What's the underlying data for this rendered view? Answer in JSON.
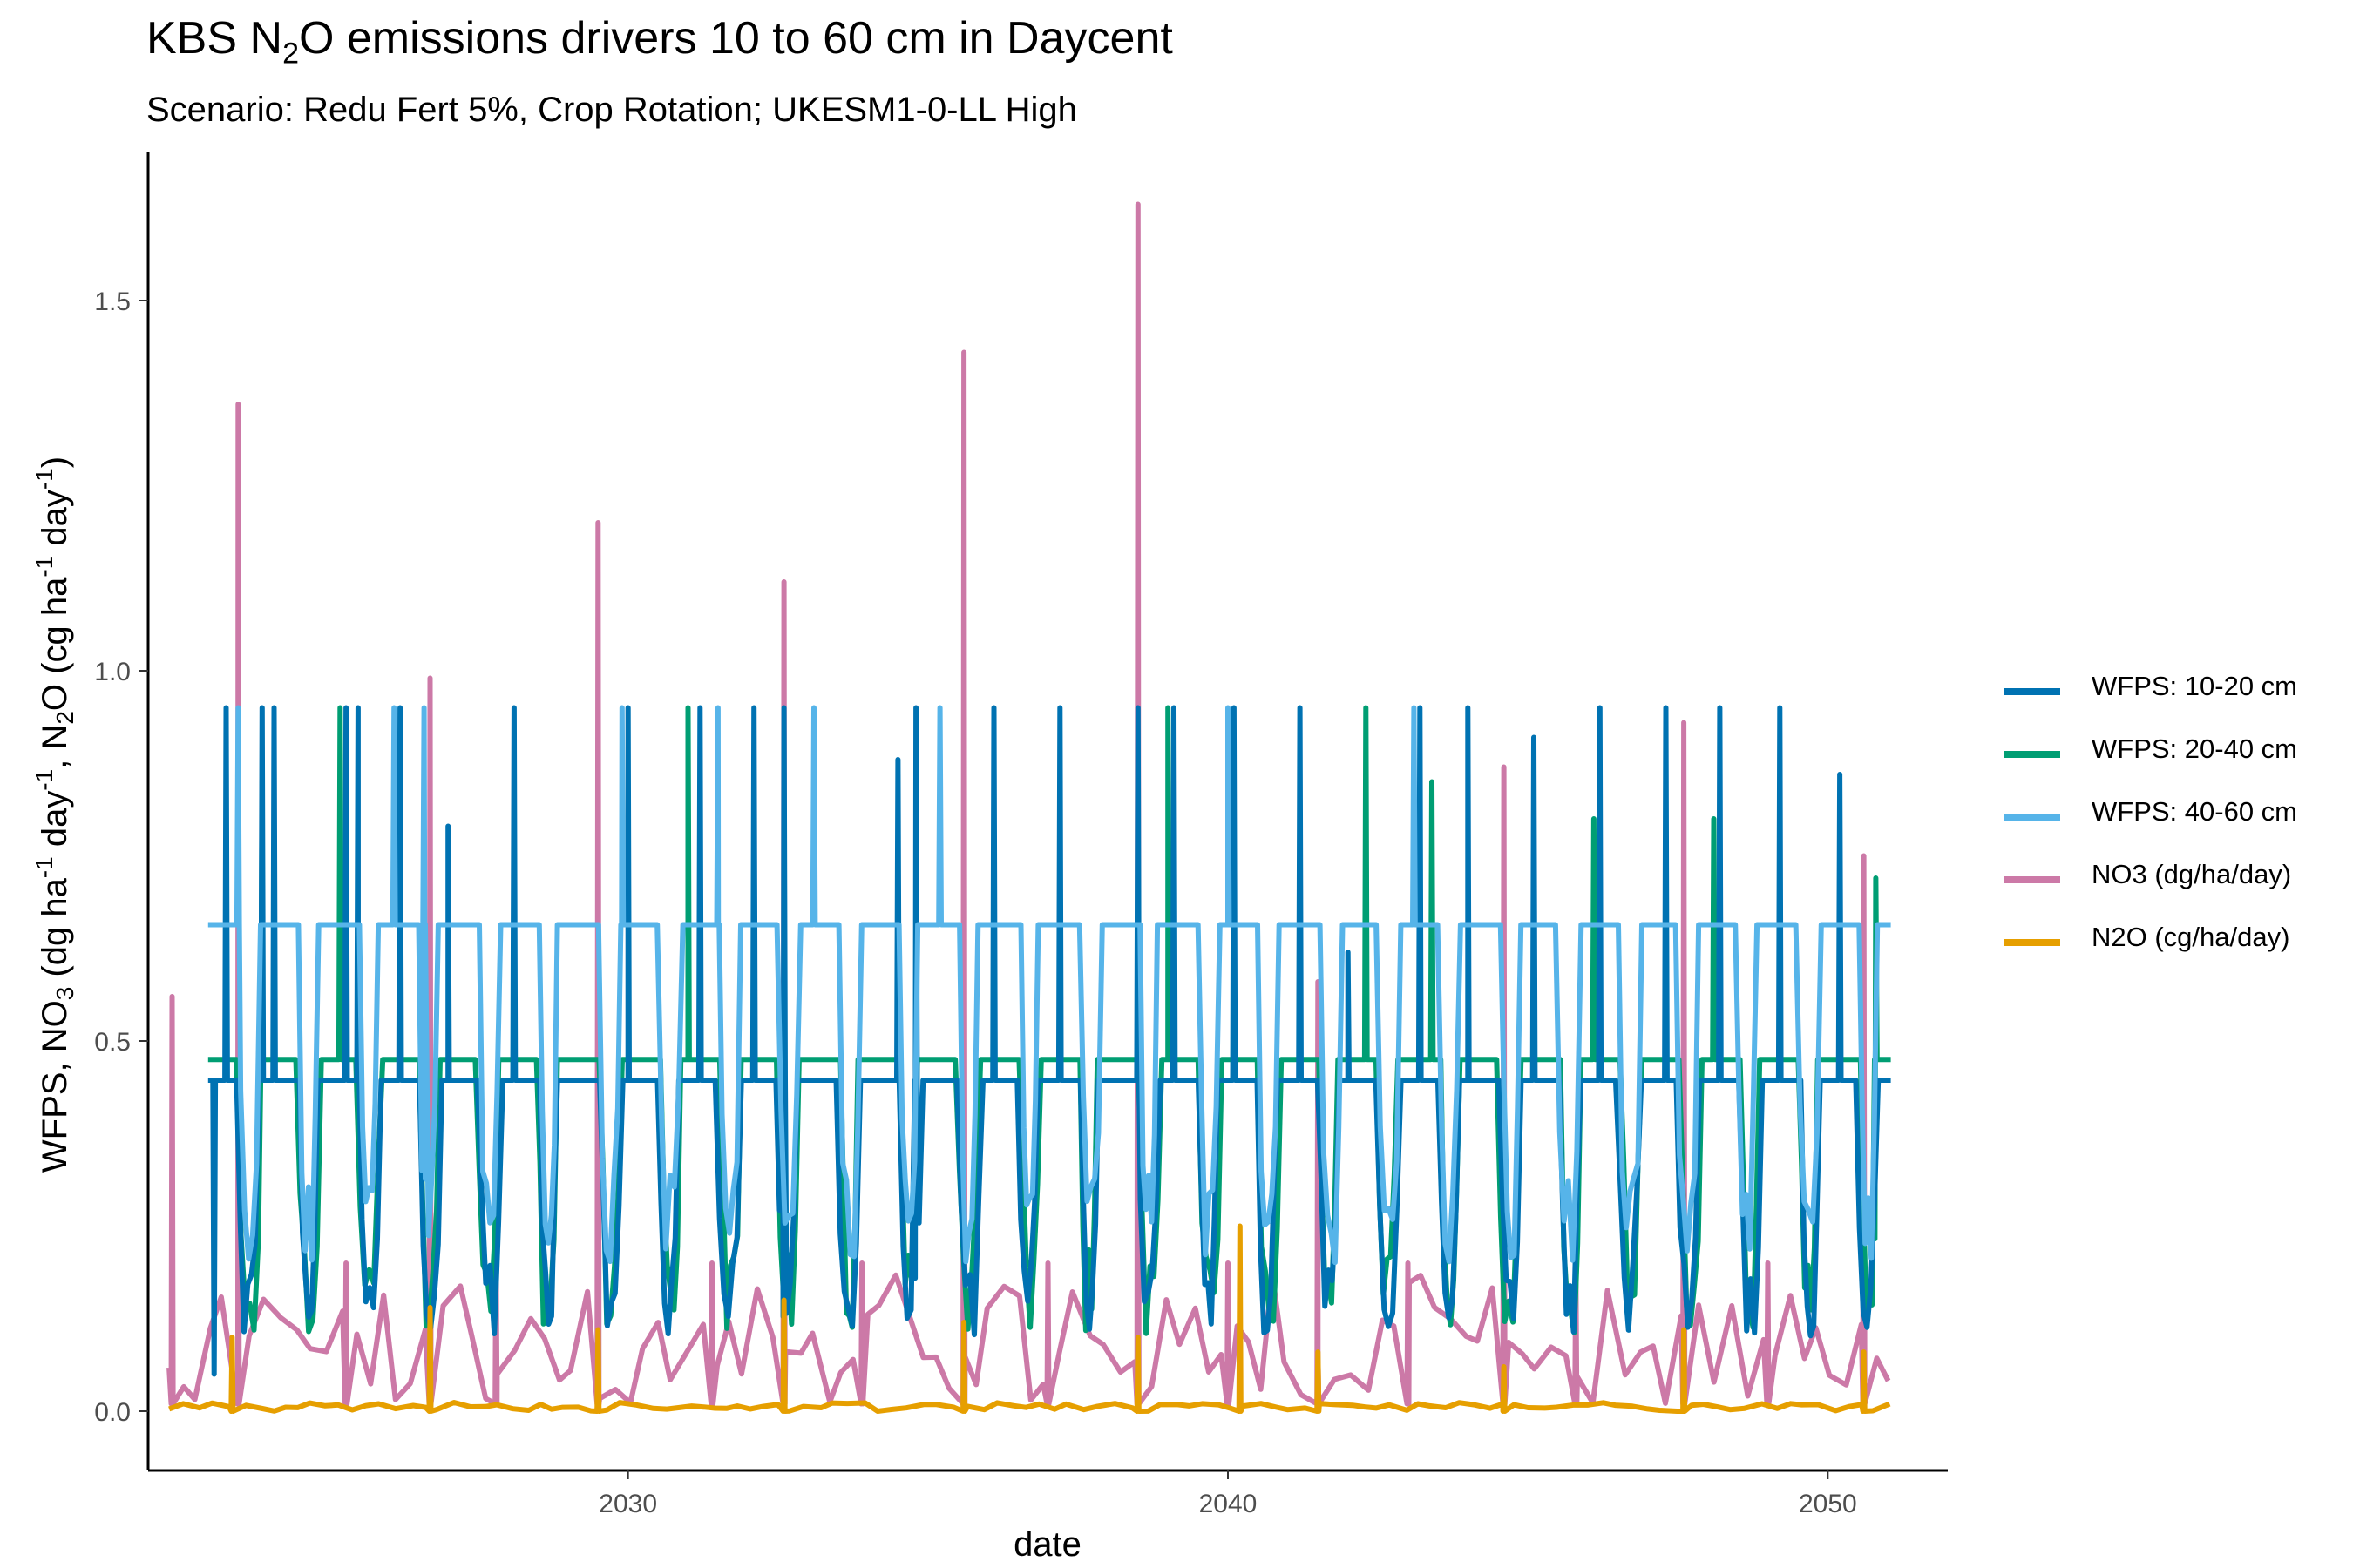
{
  "title": {
    "text_before": "KBS N",
    "sub": "2",
    "text_after": "O emissions drivers 10 to 60 cm in Daycent"
  },
  "subtitle": "Scenario: Redu Fert 5%, Crop Rotation; UKESM1-0-LL High",
  "chart_data": {
    "type": "line",
    "title": "KBS N2O emissions drivers 10 to 60 cm in Daycent",
    "subtitle": "Scenario: Redu Fert 5%, Crop Rotation; UKESM1-0-LL High",
    "xlabel": "date",
    "ylabel": "WFPS, NO3 (dg ha-1 day-1), N2O (cg ha-1 day-1)",
    "xlim": [
      2022.0,
      2052.0
    ],
    "ylim": [
      -0.08,
      1.7
    ],
    "x_ticks": [
      2030,
      2040,
      2050
    ],
    "x_tick_labels": [
      "2030",
      "2040",
      "2050"
    ],
    "y_ticks": [
      0.0,
      0.5,
      1.0,
      1.5
    ],
    "y_tick_labels": [
      "0.0",
      "0.5",
      "1.0",
      "1.5"
    ],
    "grid": false,
    "legend_position": "right",
    "series": [
      {
        "name": "WFPS: 10-20 cm",
        "color": "#0072B2",
        "baseline": 0.447,
        "low_min": 0.1,
        "low_max": 0.2,
        "peaks": [
          [
            2023.1,
            0.05
          ],
          [
            2023.3,
            0.95
          ],
          [
            2023.9,
            0.95
          ],
          [
            2024.1,
            0.95
          ],
          [
            2025.3,
            0.95
          ],
          [
            2025.5,
            0.95
          ],
          [
            2026.2,
            0.95
          ],
          [
            2027.0,
            0.79
          ],
          [
            2028.1,
            0.95
          ],
          [
            2030.0,
            0.95
          ],
          [
            2031.2,
            0.95
          ],
          [
            2032.1,
            0.95
          ],
          [
            2032.6,
            0.95
          ],
          [
            2034.5,
            0.88
          ],
          [
            2034.8,
            0.95
          ],
          [
            2036.1,
            0.95
          ],
          [
            2037.2,
            0.95
          ],
          [
            2038.5,
            0.95
          ],
          [
            2039.1,
            0.95
          ],
          [
            2040.1,
            0.95
          ],
          [
            2041.2,
            0.95
          ],
          [
            2042.0,
            0.62
          ],
          [
            2043.2,
            0.95
          ],
          [
            2044.0,
            0.95
          ],
          [
            2045.1,
            0.91
          ],
          [
            2046.2,
            0.95
          ],
          [
            2047.3,
            0.95
          ],
          [
            2048.2,
            0.95
          ],
          [
            2049.2,
            0.95
          ],
          [
            2050.2,
            0.86
          ]
        ]
      },
      {
        "name": "WFPS: 20-40 cm",
        "color": "#009E73",
        "baseline": 0.475,
        "low_min": 0.1,
        "low_max": 0.22,
        "peaks": [
          [
            2023.9,
            0.85
          ],
          [
            2025.2,
            0.95
          ],
          [
            2031.0,
            0.95
          ],
          [
            2039.0,
            0.95
          ],
          [
            2042.3,
            0.95
          ],
          [
            2043.4,
            0.85
          ],
          [
            2046.1,
            0.8
          ],
          [
            2048.1,
            0.8
          ],
          [
            2050.8,
            0.72
          ]
        ]
      },
      {
        "name": "WFPS: 40-60 cm",
        "color": "#56B4E9",
        "baseline": 0.657,
        "low_min": 0.2,
        "low_max": 0.32,
        "peaks": [
          [
            2023.5,
            0.95
          ],
          [
            2026.1,
            0.95
          ],
          [
            2026.6,
            0.95
          ],
          [
            2029.9,
            0.95
          ],
          [
            2031.5,
            0.95
          ],
          [
            2033.1,
            0.95
          ],
          [
            2035.2,
            0.95
          ],
          [
            2040.0,
            0.95
          ],
          [
            2043.1,
            0.95
          ]
        ]
      },
      {
        "name": "NO3 (dg/ha/day)",
        "color": "#CC79A7",
        "peaks": [
          [
            2022.4,
            0.56
          ],
          [
            2023.5,
            1.36
          ],
          [
            2025.3,
            0.2
          ],
          [
            2026.7,
            0.99
          ],
          [
            2027.8,
            0.23
          ],
          [
            2029.5,
            1.2
          ],
          [
            2031.4,
            0.2
          ],
          [
            2032.6,
            1.12
          ],
          [
            2033.9,
            0.2
          ],
          [
            2035.6,
            1.43
          ],
          [
            2037.0,
            0.2
          ],
          [
            2038.5,
            1.63
          ],
          [
            2040.0,
            0.2
          ],
          [
            2041.5,
            0.58
          ],
          [
            2043.0,
            0.2
          ],
          [
            2044.6,
            0.87
          ],
          [
            2045.8,
            0.2
          ],
          [
            2047.6,
            0.93
          ],
          [
            2049.0,
            0.2
          ],
          [
            2050.6,
            0.75
          ]
        ]
      },
      {
        "name": "N2O (cg/ha/day)",
        "color": "#E69F00",
        "peaks": [
          [
            2023.4,
            0.1
          ],
          [
            2026.7,
            0.14
          ],
          [
            2029.5,
            0.11
          ],
          [
            2032.6,
            0.15
          ],
          [
            2035.6,
            0.12
          ],
          [
            2038.5,
            0.1
          ],
          [
            2040.2,
            0.25
          ],
          [
            2041.5,
            0.08
          ],
          [
            2044.6,
            0.06
          ],
          [
            2047.6,
            0.11
          ],
          [
            2050.6,
            0.08
          ]
        ]
      }
    ]
  }
}
